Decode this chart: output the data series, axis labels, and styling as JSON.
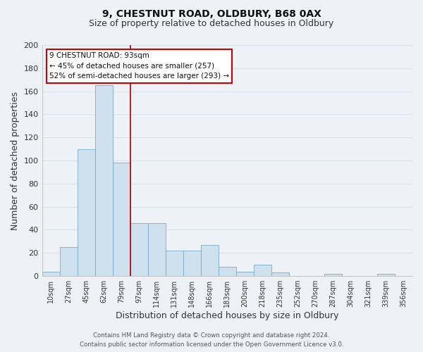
{
  "title": "9, CHESTNUT ROAD, OLDBURY, B68 0AX",
  "subtitle": "Size of property relative to detached houses in Oldbury",
  "xlabel": "Distribution of detached houses by size in Oldbury",
  "ylabel": "Number of detached properties",
  "footer_line1": "Contains HM Land Registry data © Crown copyright and database right 2024.",
  "footer_line2": "Contains public sector information licensed under the Open Government Licence v3.0.",
  "bar_color": "#cfe0ee",
  "bar_edgecolor": "#7aaac8",
  "vline_color": "#aa0000",
  "annotation_title": "9 CHESTNUT ROAD: 93sqm",
  "annotation_line1": "← 45% of detached houses are smaller (257)",
  "annotation_line2": "52% of semi-detached houses are larger (293) →",
  "annotation_box_edgecolor": "#cc0000",
  "annotation_box_facecolor": "#ffffff",
  "categories": [
    "10sqm",
    "27sqm",
    "45sqm",
    "62sqm",
    "79sqm",
    "97sqm",
    "114sqm",
    "131sqm",
    "148sqm",
    "166sqm",
    "183sqm",
    "200sqm",
    "218sqm",
    "235sqm",
    "252sqm",
    "270sqm",
    "287sqm",
    "304sqm",
    "321sqm",
    "339sqm",
    "356sqm"
  ],
  "values": [
    4,
    25,
    110,
    165,
    98,
    46,
    46,
    22,
    22,
    27,
    8,
    4,
    10,
    3,
    0,
    0,
    2,
    0,
    0,
    2,
    0
  ],
  "vline_index": 4,
  "ylim": [
    0,
    200
  ],
  "yticks": [
    0,
    20,
    40,
    60,
    80,
    100,
    120,
    140,
    160,
    180,
    200
  ],
  "grid_color": "#d5e0ea",
  "background_color": "#eef2f7",
  "title_fontsize": 10,
  "subtitle_fontsize": 9
}
